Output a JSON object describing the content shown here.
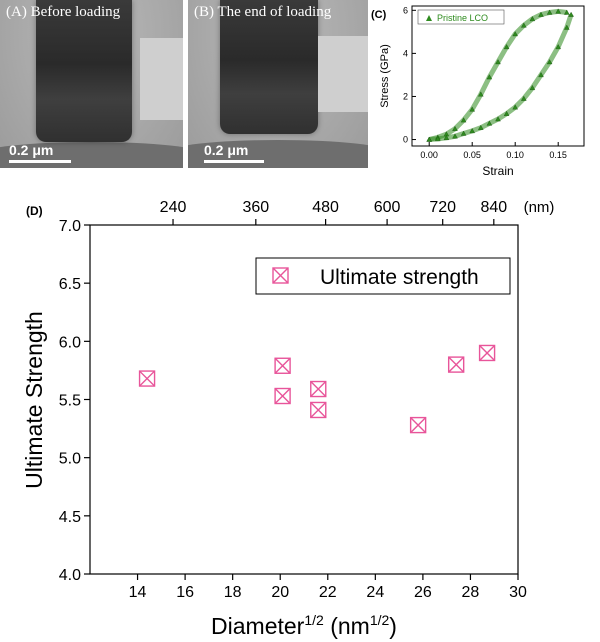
{
  "panel_a": {
    "label": "(A)  Before loading",
    "scale": "0.2 μm"
  },
  "panel_b": {
    "label": "(B)  The end of loading",
    "scale": "0.2 μm"
  },
  "colors": {
    "green": "#2e8b1e",
    "pink": "#e8559a",
    "tem_gray": "#a9a9a9",
    "pillar": "#2e2e2e"
  },
  "chart_data": [
    {
      "panel": "(C)",
      "type": "scatter",
      "xlabel": "Strain",
      "ylabel": "Stress (GPa)",
      "xlim": [
        -0.02,
        0.18
      ],
      "ylim": [
        -0.3,
        6.2
      ],
      "xticks": [
        "0.00",
        "0.05",
        "0.10",
        "0.15"
      ],
      "yticks": [
        "0",
        "2",
        "4",
        "6"
      ],
      "legend": "top-left",
      "series": [
        {
          "name": "Pristine LCO",
          "color": "#2e8b1e",
          "loading": {
            "x": [
              0.0,
              0.01,
              0.02,
              0.03,
              0.04,
              0.05,
              0.06,
              0.07,
              0.08,
              0.09,
              0.1,
              0.11,
              0.12,
              0.13,
              0.14,
              0.15,
              0.16
            ],
            "y": [
              0.0,
              0.1,
              0.25,
              0.5,
              0.9,
              1.4,
              2.1,
              2.9,
              3.6,
              4.3,
              4.9,
              5.3,
              5.6,
              5.8,
              5.9,
              5.95,
              5.9
            ]
          },
          "unloading": {
            "x": [
              0.165,
              0.16,
              0.15,
              0.14,
              0.13,
              0.12,
              0.11,
              0.1,
              0.09,
              0.08,
              0.07,
              0.06,
              0.05,
              0.04,
              0.03,
              0.02,
              0.01,
              0.0
            ],
            "y": [
              5.8,
              5.2,
              4.3,
              3.6,
              3.0,
              2.4,
              1.9,
              1.5,
              1.2,
              0.95,
              0.75,
              0.55,
              0.4,
              0.28,
              0.15,
              0.08,
              0.03,
              0.0
            ]
          }
        }
      ]
    },
    {
      "panel": "(D)",
      "type": "scatter",
      "xlabel": "Diameter",
      "xlabel_sup": "1/2",
      "xlabel_unit_open": " (nm",
      "xlabel_unit_sup": "1/2",
      "xlabel_unit_close": ")",
      "ylabel": "Ultimate Strength",
      "xlim": [
        12,
        30
      ],
      "ylim": [
        4.0,
        7.0
      ],
      "xticks": [
        14,
        16,
        18,
        20,
        22,
        24,
        26,
        28,
        30
      ],
      "yticks": [
        "4.0",
        "4.5",
        "5.0",
        "5.5",
        "6.0",
        "6.5",
        "7.0"
      ],
      "top_ticks": [
        "240",
        "360",
        "480",
        "600",
        "720",
        "840"
      ],
      "top_unit": "(nm)",
      "legend": "top-right",
      "series": [
        {
          "name": "Ultimate strength",
          "color": "#e8559a",
          "marker": "square-x",
          "x": [
            14.4,
            20.1,
            20.1,
            21.6,
            21.6,
            25.8,
            27.4,
            28.7
          ],
          "y": [
            5.68,
            5.79,
            5.53,
            5.59,
            5.41,
            5.28,
            5.8,
            5.9
          ]
        }
      ]
    }
  ]
}
